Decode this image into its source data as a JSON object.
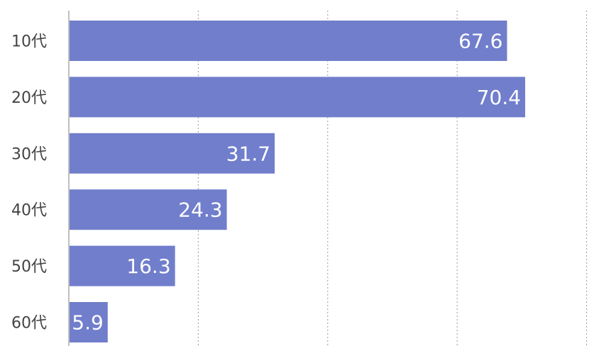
{
  "chart_data": {
    "type": "bar",
    "orientation": "horizontal",
    "categories": [
      "10代",
      "20代",
      "30代",
      "40代",
      "50代",
      "60代"
    ],
    "values": [
      67.6,
      70.4,
      31.7,
      24.3,
      16.3,
      5.9
    ],
    "xlim": [
      0,
      80
    ],
    "grid": true,
    "bar_color": "#717ecc",
    "grid_color": "#999999",
    "axis_color": "#aaaaaa"
  }
}
